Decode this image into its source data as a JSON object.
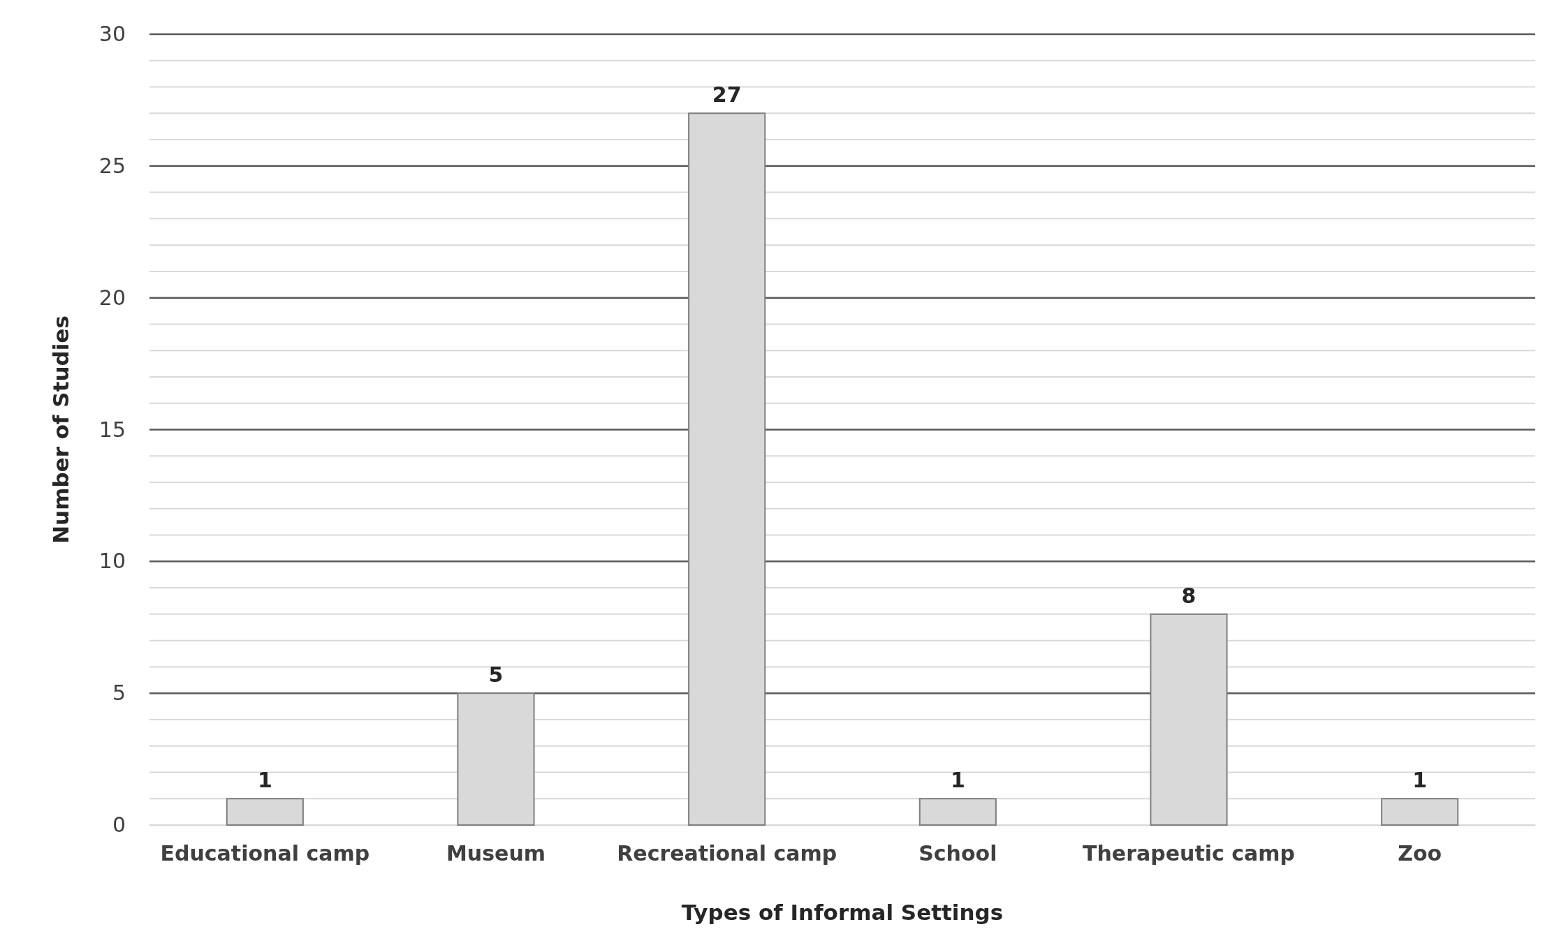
{
  "chart_data": {
    "type": "bar",
    "xlabel": "Types of Informal Settings",
    "ylabel": "Number of Studies",
    "categories": [
      "Educational camp",
      "Museum",
      "Recreational camp",
      "School",
      "Therapeutic camp",
      "Zoo"
    ],
    "values": [
      1,
      5,
      27,
      1,
      8,
      1
    ],
    "color": "#d9d9d9",
    "ylim": [
      0,
      30
    ],
    "yticks": [
      0,
      {
        "value": 1,
        "label": null
      },
      {
        "value": 2,
        "label": null
      },
      {
        "value": 3,
        "label": null
      },
      {
        "value": 4,
        "label": null
      },
      5,
      {
        "value": 6,
        "label": null
      },
      {
        "value": 7,
        "label": null
      },
      {
        "value": 8,
        "label": null
      },
      {
        "value": 9,
        "label": null
      },
      10,
      {
        "value": 11,
        "label": null
      },
      {
        "value": 12,
        "label": null
      },
      {
        "value": 13,
        "label": null
      },
      {
        "value": 14,
        "label": null
      },
      15,
      {
        "value": 16,
        "label": null
      },
      {
        "value": 17,
        "label": null
      },
      {
        "value": 18,
        "label": null
      },
      {
        "value": 19,
        "label": null
      },
      20,
      {
        "value": 21,
        "label": null
      },
      {
        "value": 22,
        "label": null
      },
      {
        "value": 23,
        "label": null
      },
      {
        "value": 24,
        "label": null
      },
      25,
      {
        "value": 26,
        "label": null
      },
      {
        "value": 27,
        "label": null
      },
      {
        "value": 28,
        "label": null
      },
      {
        "value": 29,
        "label": null
      },
      30
    ],
    "grid": "y",
    "data_labels": true
  }
}
